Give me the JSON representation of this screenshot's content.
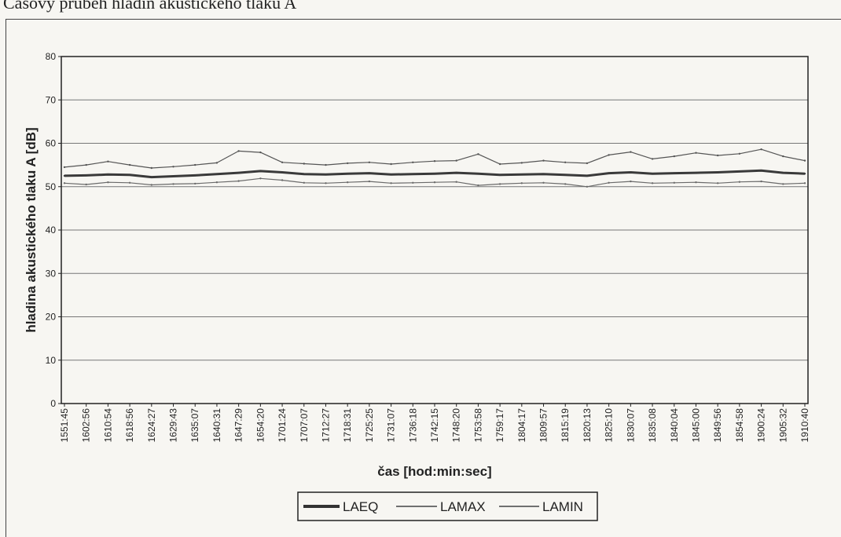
{
  "page": {
    "title": "Časový průběh hladin akustického tlaku A"
  },
  "chart_data": {
    "type": "line",
    "title": "",
    "xlabel": "čas [hod:min:sec]",
    "ylabel": "hladina akustického tlaku A [dB]",
    "ylim": [
      0,
      80
    ],
    "yticks": [
      0,
      10,
      20,
      30,
      40,
      50,
      60,
      70,
      80
    ],
    "grid": true,
    "legend_position": "bottom-center",
    "x": [
      "1551:45",
      "1602:56",
      "1610:54",
      "1618:56",
      "1624:27",
      "1629:43",
      "1635:07",
      "1640:31",
      "1647:29",
      "1654:20",
      "1701:24",
      "1707:07",
      "1712:27",
      "1718:31",
      "1725:25",
      "1731:07",
      "1736:18",
      "1742:15",
      "1748:20",
      "1753:58",
      "1759:17",
      "1804:17",
      "1809:57",
      "1815:19",
      "1820:13",
      "1825:10",
      "1830:07",
      "1835:08",
      "1840:04",
      "1845:00",
      "1849:56",
      "1854:58",
      "1900:24",
      "1905:32",
      "1910:40"
    ],
    "series": [
      {
        "name": "LAEQ",
        "color": "#3a3a3a",
        "values": [
          52.5,
          52.6,
          52.8,
          52.7,
          52.2,
          52.4,
          52.6,
          52.9,
          53.2,
          53.6,
          53.3,
          52.9,
          52.8,
          53.0,
          53.1,
          52.8,
          52.9,
          53.0,
          53.2,
          53.0,
          52.7,
          52.8,
          52.9,
          52.7,
          52.5,
          53.1,
          53.3,
          53.0,
          53.1,
          53.2,
          53.3,
          53.5,
          53.7,
          53.2,
          53.0
        ]
      },
      {
        "name": "LAMAX",
        "color": "#555555",
        "values": [
          54.5,
          55.0,
          55.8,
          55.0,
          54.3,
          54.6,
          55.0,
          55.5,
          58.2,
          57.9,
          55.6,
          55.3,
          55.0,
          55.4,
          55.6,
          55.2,
          55.6,
          55.9,
          56.0,
          57.5,
          55.2,
          55.5,
          56.0,
          55.6,
          55.4,
          57.3,
          58.0,
          56.4,
          57.0,
          57.8,
          57.2,
          57.6,
          58.6,
          57.0,
          56.0
        ]
      },
      {
        "name": "LAMIN",
        "color": "#6a6a6a",
        "values": [
          50.8,
          50.5,
          51.0,
          50.9,
          50.4,
          50.6,
          50.7,
          51.0,
          51.3,
          51.9,
          51.5,
          50.9,
          50.8,
          51.0,
          51.2,
          50.8,
          50.9,
          51.0,
          51.1,
          50.3,
          50.6,
          50.8,
          50.9,
          50.6,
          50.0,
          50.9,
          51.2,
          50.8,
          50.9,
          51.0,
          50.8,
          51.1,
          51.2,
          50.6,
          50.8
        ]
      }
    ]
  }
}
